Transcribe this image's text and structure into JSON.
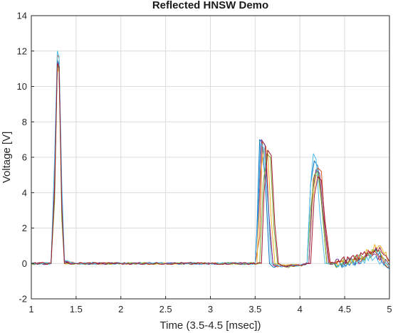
{
  "chart_data": {
    "type": "line",
    "title": "Reflected HNSW Demo",
    "xlabel": "Time (3.5-4.5 [msec])",
    "ylabel": "Voltage [V]",
    "xlim": [
      1,
      5
    ],
    "ylim": [
      -2,
      14
    ],
    "xticks": [
      "1",
      "1.5",
      "2",
      "2.5",
      "3",
      "3.5",
      "4",
      "4.5",
      "5"
    ],
    "yticks": [
      "-2",
      "0",
      "2",
      "4",
      "6",
      "8",
      "10",
      "12",
      "14"
    ],
    "grid": true,
    "legend": "none",
    "colors": [
      "#0072BD",
      "#D95319",
      "#EDB120",
      "#7E2F8E",
      "#77AC30",
      "#4DBEEE",
      "#A2142F"
    ],
    "series_note_count": 7,
    "series": [
      {
        "x": [
          1.0,
          1.22,
          1.26,
          1.29,
          1.31,
          1.34,
          1.37,
          1.5,
          2.0,
          2.5,
          3.0,
          3.5,
          3.52,
          3.55,
          3.58,
          3.62,
          3.66,
          3.7,
          3.8,
          4.0,
          4.08,
          4.12,
          4.16,
          4.2,
          4.25,
          4.3,
          4.45,
          4.7,
          4.85,
          5.0
        ],
        "y": [
          0.0,
          0.0,
          5.0,
          11.5,
          11.2,
          4.0,
          0.1,
          0.0,
          0.0,
          0.0,
          0.0,
          0.0,
          2.0,
          7.0,
          6.8,
          4.0,
          0.0,
          -0.2,
          -0.1,
          -0.1,
          0.0,
          4.5,
          5.8,
          5.5,
          3.0,
          0.0,
          0.0,
          0.2,
          0.8,
          -0.3
        ]
      },
      {
        "x": [
          1.0,
          1.22,
          1.26,
          1.29,
          1.31,
          1.34,
          1.37,
          1.5,
          2.0,
          2.5,
          3.0,
          3.5,
          3.55,
          3.58,
          3.62,
          3.66,
          3.7,
          3.75,
          3.8,
          4.0,
          4.1,
          4.15,
          4.2,
          4.24,
          4.28,
          4.33,
          4.45,
          4.7,
          4.85,
          5.0
        ],
        "y": [
          0.0,
          0.0,
          4.0,
          11.8,
          11.6,
          3.0,
          0.1,
          0.0,
          0.0,
          0.0,
          0.0,
          0.0,
          1.5,
          6.9,
          6.6,
          2.0,
          0.0,
          -0.2,
          -0.1,
          -0.1,
          0.0,
          4.8,
          5.4,
          5.2,
          2.0,
          0.0,
          0.1,
          0.3,
          0.6,
          -0.2
        ]
      },
      {
        "x": [
          1.0,
          1.22,
          1.26,
          1.29,
          1.31,
          1.34,
          1.37,
          1.5,
          2.0,
          2.5,
          3.0,
          3.52,
          3.56,
          3.6,
          3.64,
          3.68,
          3.72,
          3.8,
          4.0,
          4.1,
          4.14,
          4.18,
          4.22,
          4.26,
          4.3,
          4.45,
          4.7,
          4.88,
          5.0
        ],
        "y": [
          0.0,
          0.0,
          5.5,
          11.0,
          10.8,
          3.5,
          0.0,
          0.0,
          0.0,
          0.0,
          0.0,
          0.0,
          5.0,
          6.5,
          6.3,
          2.5,
          0.0,
          -0.1,
          -0.1,
          0.0,
          3.5,
          5.0,
          4.9,
          2.5,
          0.0,
          0.0,
          0.4,
          1.0,
          0.2
        ]
      },
      {
        "x": [
          1.0,
          1.22,
          1.26,
          1.29,
          1.31,
          1.34,
          1.37,
          1.5,
          2.0,
          2.5,
          3.0,
          3.5,
          3.54,
          3.57,
          3.61,
          3.65,
          3.7,
          3.8,
          4.0,
          4.1,
          4.14,
          4.18,
          4.22,
          4.26,
          4.32,
          4.45,
          4.7,
          4.85,
          5.0
        ],
        "y": [
          0.0,
          0.0,
          4.5,
          11.4,
          11.0,
          3.8,
          0.1,
          0.0,
          0.0,
          0.0,
          0.0,
          0.0,
          3.0,
          7.0,
          6.7,
          3.0,
          -0.1,
          -0.2,
          -0.1,
          0.0,
          4.0,
          5.3,
          5.1,
          2.8,
          0.0,
          0.0,
          0.2,
          0.5,
          -0.1
        ]
      },
      {
        "x": [
          1.0,
          1.22,
          1.26,
          1.29,
          1.31,
          1.34,
          1.37,
          1.5,
          2.0,
          2.5,
          3.0,
          3.55,
          3.59,
          3.63,
          3.67,
          3.71,
          3.75,
          3.85,
          4.0,
          4.08,
          4.12,
          4.16,
          4.2,
          4.24,
          4.3,
          4.45,
          4.7,
          4.85,
          5.0
        ],
        "y": [
          0.0,
          0.0,
          3.5,
          11.2,
          10.9,
          2.5,
          0.0,
          0.0,
          0.0,
          0.0,
          0.0,
          0.0,
          4.5,
          6.2,
          6.0,
          2.0,
          0.0,
          -0.2,
          -0.1,
          0.0,
          3.0,
          5.0,
          5.2,
          3.5,
          0.0,
          0.0,
          0.3,
          0.7,
          0.0
        ]
      },
      {
        "x": [
          1.0,
          1.22,
          1.26,
          1.29,
          1.31,
          1.34,
          1.37,
          1.5,
          2.0,
          2.5,
          3.0,
          3.5,
          3.53,
          3.56,
          3.6,
          3.64,
          3.68,
          3.8,
          4.0,
          4.08,
          4.12,
          4.15,
          4.18,
          4.22,
          4.28,
          4.45,
          4.7,
          4.85,
          5.0
        ],
        "y": [
          0.0,
          0.0,
          6.0,
          12.0,
          11.7,
          4.5,
          0.2,
          0.0,
          0.0,
          0.0,
          0.0,
          0.0,
          2.5,
          6.8,
          6.5,
          3.5,
          0.0,
          -0.2,
          -0.1,
          0.0,
          4.5,
          6.2,
          5.9,
          3.0,
          0.0,
          0.0,
          0.2,
          0.4,
          -0.3
        ]
      },
      {
        "x": [
          1.0,
          1.22,
          1.26,
          1.29,
          1.31,
          1.34,
          1.37,
          1.5,
          2.0,
          2.5,
          3.0,
          3.57,
          3.6,
          3.64,
          3.68,
          3.72,
          3.76,
          3.85,
          4.0,
          4.12,
          4.16,
          4.2,
          4.24,
          4.28,
          4.34,
          4.45,
          4.7,
          4.85,
          5.0
        ],
        "y": [
          0.0,
          0.0,
          4.2,
          11.3,
          11.1,
          3.2,
          0.0,
          0.0,
          0.0,
          0.0,
          0.0,
          0.0,
          4.0,
          6.4,
          6.1,
          2.2,
          0.0,
          -0.2,
          -0.1,
          0.0,
          3.8,
          4.9,
          4.7,
          2.4,
          0.0,
          0.1,
          0.5,
          0.9,
          0.1
        ]
      }
    ]
  }
}
